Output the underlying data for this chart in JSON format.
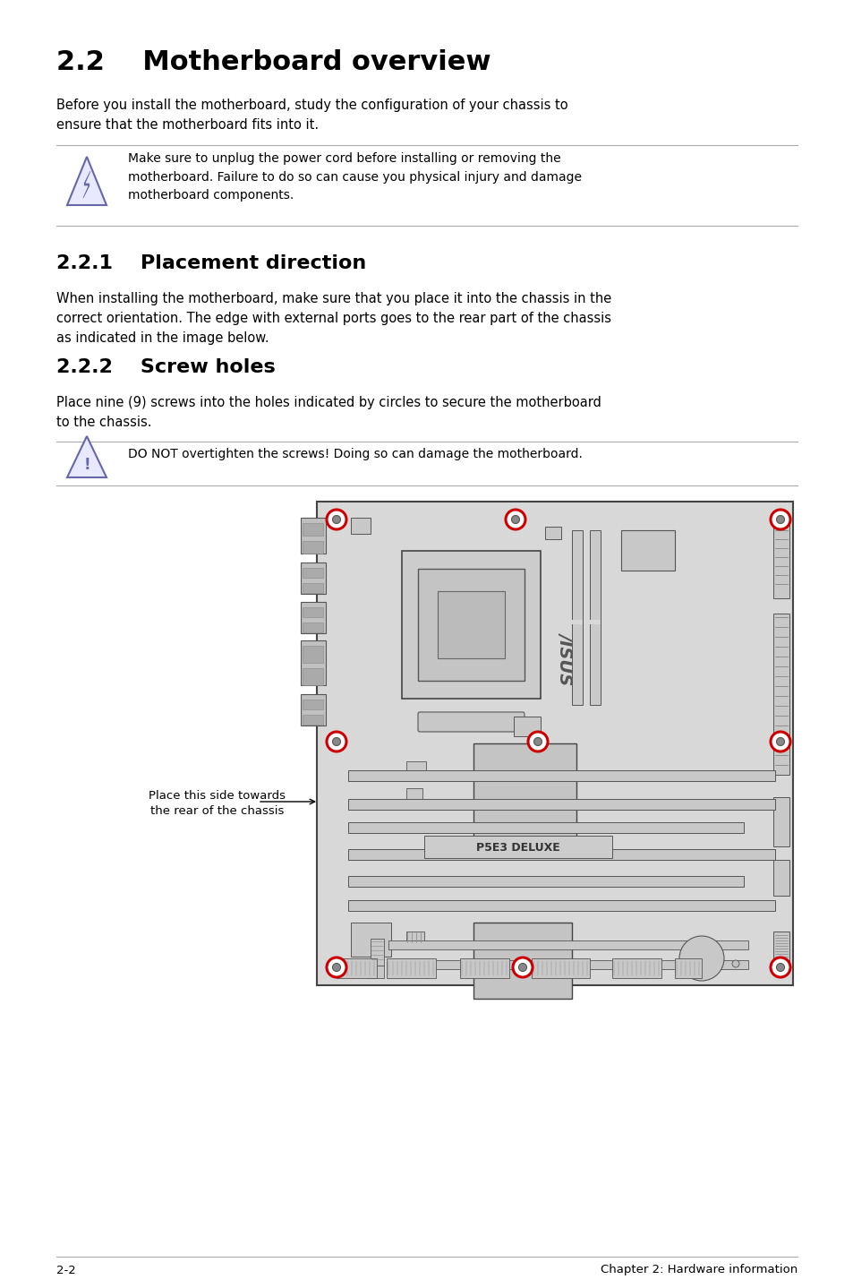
{
  "title": "2.2    Motherboard overview",
  "body_fontsize": 10.5,
  "subsection1_title": "2.2.1    Placement direction",
  "subsection2_title": "2.2.2    Screw holes",
  "intro_text": "Before you install the motherboard, study the configuration of your chassis to\nensure that the motherboard fits into it.",
  "warning_text": "Make sure to unplug the power cord before installing or removing the\nmotherboard. Failure to do so can cause you physical injury and damage\nmotherboard components.",
  "placement_text": "When installing the motherboard, make sure that you place it into the chassis in the\ncorrect orientation. The edge with external ports goes to the rear part of the chassis\nas indicated in the image below.",
  "screw_text": "Place nine (9) screws into the holes indicated by circles to secure the motherboard\nto the chassis.",
  "caution_text": "DO NOT overtighten the screws! Doing so can damage the motherboard.",
  "label_text": "Place this side towards\nthe rear of the chassis",
  "footer_left": "2-2",
  "footer_right": "Chapter 2: Hardware information",
  "bg_color": "#ffffff",
  "text_color": "#000000",
  "screw_color": "#cc0000",
  "board_fill": "#d4d4d4",
  "board_edge": "#555555",
  "line_color": "#aaaaaa",
  "icon_fill": "#e8e8ff",
  "icon_edge": "#6666aa"
}
